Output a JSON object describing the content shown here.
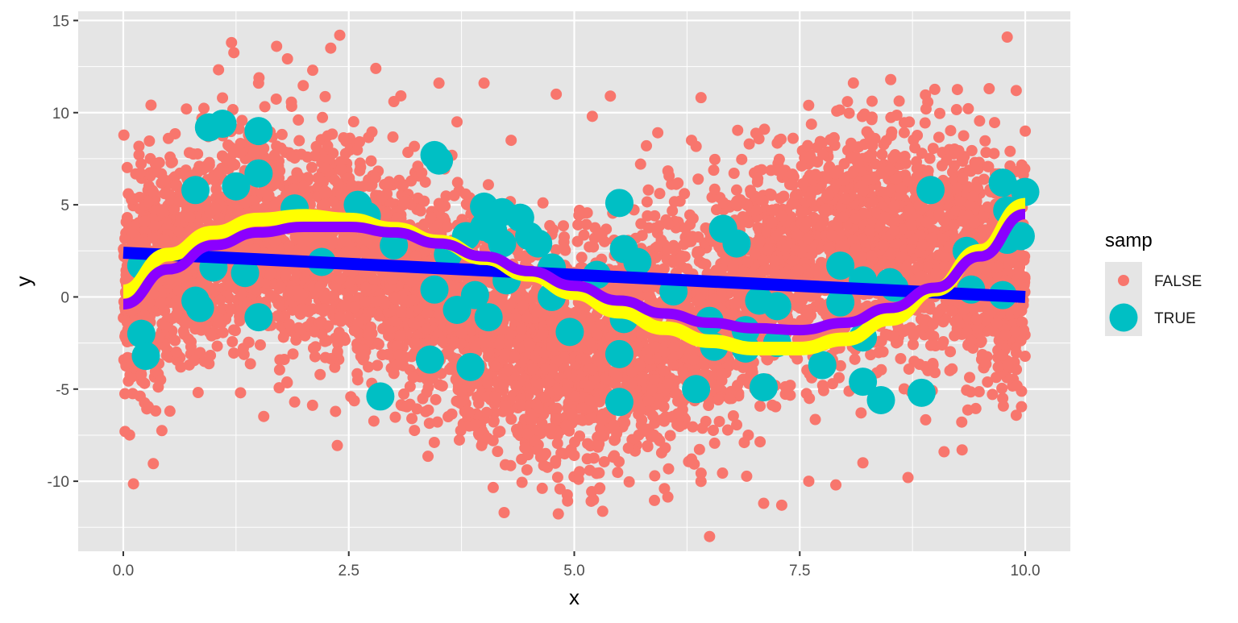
{
  "chart_data": {
    "type": "scatter",
    "title": "",
    "xlabel": "x",
    "ylabel": "y",
    "xlim": [
      -0.5,
      10.5
    ],
    "ylim": [
      -13.8,
      15.5
    ],
    "x_ticks": [
      0,
      2.5,
      5,
      7.5,
      10
    ],
    "x_tick_labels": [
      "0.0",
      "2.5",
      "5.0",
      "7.5",
      "10.0"
    ],
    "y_ticks": [
      -10,
      -5,
      0,
      5,
      10,
      15
    ],
    "y_tick_labels": [
      "-10",
      "-5",
      "0",
      "5",
      "10",
      "15"
    ],
    "grid": true,
    "background": "#e5e5e5",
    "legend": {
      "title": "samp",
      "placement": "right",
      "entries": [
        {
          "label": "FALSE",
          "color": "#f8766d"
        },
        {
          "label": "TRUE",
          "color": "#00bfc4"
        }
      ]
    },
    "series": [
      {
        "name": "FALSE",
        "kind": "points",
        "color": "#f8766d",
        "note_density": "dense cloud following y = 3*sin(x) + noise",
        "points": [
          [
            0.02,
            -7.3
          ],
          [
            0.05,
            1.2
          ],
          [
            0.1,
            3.5
          ],
          [
            0.2,
            -4.2
          ],
          [
            0.3,
            7.5
          ],
          [
            0.4,
            -2.2
          ],
          [
            0.5,
            8.6
          ],
          [
            0.7,
            10.2
          ],
          [
            0.9,
            -3.5
          ],
          [
            1.1,
            10.8
          ],
          [
            1.2,
            13.8
          ],
          [
            1.3,
            -5.2
          ],
          [
            1.5,
            11.6
          ],
          [
            1.7,
            13.6
          ],
          [
            1.9,
            -5.7
          ],
          [
            2.1,
            12.3
          ],
          [
            2.3,
            13.5
          ],
          [
            2.4,
            14.2
          ],
          [
            2.6,
            -4.5
          ],
          [
            2.8,
            12.4
          ],
          [
            3.0,
            10.6
          ],
          [
            3.2,
            -6.6
          ],
          [
            3.5,
            11.6
          ],
          [
            3.7,
            9.5
          ],
          [
            4.0,
            11.6
          ],
          [
            4.1,
            -7.8
          ],
          [
            4.3,
            8.5
          ],
          [
            4.6,
            -6.0
          ],
          [
            4.8,
            11.0
          ],
          [
            5.0,
            -8.6
          ],
          [
            5.2,
            9.8
          ],
          [
            5.4,
            10.9
          ],
          [
            5.6,
            -8.2
          ],
          [
            5.8,
            8.2
          ],
          [
            6.0,
            -10.4
          ],
          [
            6.3,
            8.5
          ],
          [
            6.5,
            -13.0
          ],
          [
            6.8,
            5.8
          ],
          [
            7.1,
            -11.2
          ],
          [
            7.3,
            -11.3
          ],
          [
            7.6,
            -10.0
          ],
          [
            7.9,
            -10.2
          ],
          [
            8.2,
            -9.0
          ],
          [
            8.5,
            6.9
          ],
          [
            8.7,
            -9.8
          ],
          [
            8.9,
            10.2
          ],
          [
            9.1,
            -8.4
          ],
          [
            9.3,
            -8.3
          ],
          [
            9.6,
            11.3
          ],
          [
            9.8,
            14.1
          ],
          [
            9.9,
            11.2
          ],
          [
            10.0,
            9.0
          ],
          [
            9.7,
            -3.8
          ],
          [
            8.0,
            2.0
          ],
          [
            6.0,
            -3.0
          ],
          [
            4.5,
            1.5
          ],
          [
            3.0,
            4.0
          ],
          [
            1.0,
            3.0
          ],
          [
            2.0,
            6.0
          ],
          [
            7.0,
            -5.0
          ]
        ]
      },
      {
        "name": "TRUE",
        "kind": "points",
        "color": "#00bfc4",
        "points": [
          [
            0.2,
            -2.0
          ],
          [
            0.25,
            -3.2
          ],
          [
            0.2,
            1.7
          ],
          [
            0.8,
            5.8
          ],
          [
            0.8,
            -0.2
          ],
          [
            0.85,
            -0.6
          ],
          [
            0.95,
            9.2
          ],
          [
            1.0,
            1.6
          ],
          [
            1.1,
            9.4
          ],
          [
            1.25,
            6.0
          ],
          [
            1.35,
            1.3
          ],
          [
            1.5,
            9.0
          ],
          [
            1.5,
            6.7
          ],
          [
            1.5,
            -1.1
          ],
          [
            1.9,
            4.8
          ],
          [
            2.2,
            1.9
          ],
          [
            2.6,
            5.0
          ],
          [
            2.7,
            4.4
          ],
          [
            2.85,
            -5.4
          ],
          [
            3.0,
            2.8
          ],
          [
            3.4,
            -3.4
          ],
          [
            3.45,
            7.7
          ],
          [
            3.45,
            0.4
          ],
          [
            3.5,
            7.4
          ],
          [
            3.6,
            2.3
          ],
          [
            3.7,
            -0.7
          ],
          [
            3.8,
            3.3
          ],
          [
            3.85,
            -3.8
          ],
          [
            3.9,
            0.1
          ],
          [
            4.0,
            4.9
          ],
          [
            4.0,
            3.8
          ],
          [
            4.05,
            -1.1
          ],
          [
            4.1,
            3.6
          ],
          [
            4.2,
            4.6
          ],
          [
            4.2,
            2.9
          ],
          [
            4.25,
            0.9
          ],
          [
            4.4,
            4.3
          ],
          [
            4.5,
            3.3
          ],
          [
            4.6,
            2.9
          ],
          [
            4.75,
            1.6
          ],
          [
            4.75,
            0.0
          ],
          [
            4.95,
            -1.9
          ],
          [
            5.25,
            1.2
          ],
          [
            5.5,
            5.1
          ],
          [
            5.5,
            -3.1
          ],
          [
            5.5,
            -5.7
          ],
          [
            5.55,
            2.6
          ],
          [
            5.55,
            -1.2
          ],
          [
            5.7,
            1.9
          ],
          [
            6.1,
            0.3
          ],
          [
            6.35,
            -5.0
          ],
          [
            6.5,
            -1.3
          ],
          [
            6.55,
            -2.7
          ],
          [
            6.65,
            3.7
          ],
          [
            6.8,
            2.9
          ],
          [
            6.9,
            -1.8
          ],
          [
            6.9,
            -2.8
          ],
          [
            7.05,
            -0.2
          ],
          [
            7.1,
            -4.9
          ],
          [
            7.25,
            -0.5
          ],
          [
            7.25,
            -2.5
          ],
          [
            7.75,
            -3.7
          ],
          [
            7.95,
            1.7
          ],
          [
            7.95,
            -0.3
          ],
          [
            8.2,
            0.9
          ],
          [
            8.2,
            -2.2
          ],
          [
            8.2,
            -4.6
          ],
          [
            8.4,
            -5.6
          ],
          [
            8.5,
            0.8
          ],
          [
            8.55,
            0.5
          ],
          [
            8.85,
            -5.2
          ],
          [
            8.95,
            5.8
          ],
          [
            9.35,
            2.5
          ],
          [
            9.4,
            0.4
          ],
          [
            9.75,
            6.2
          ],
          [
            9.8,
            4.7
          ],
          [
            9.8,
            3.1
          ],
          [
            9.75,
            0.1
          ],
          [
            9.95,
            3.3
          ],
          [
            10.0,
            5.7
          ]
        ]
      },
      {
        "name": "",
        "kind": "line",
        "color": "#0000ff",
        "points": [
          [
            0,
            2.4
          ],
          [
            10,
            0.0
          ]
        ]
      },
      {
        "name": "",
        "kind": "curve",
        "color": "#ffff00",
        "points": [
          [
            0,
            0.3
          ],
          [
            0.5,
            2.3
          ],
          [
            1.0,
            3.5
          ],
          [
            1.5,
            4.2
          ],
          [
            2.0,
            4.4
          ],
          [
            2.5,
            4.2
          ],
          [
            3.0,
            3.7
          ],
          [
            3.5,
            3.0
          ],
          [
            4.0,
            2.1
          ],
          [
            4.5,
            1.2
          ],
          [
            5.0,
            0.2
          ],
          [
            5.5,
            -0.8
          ],
          [
            6.0,
            -1.7
          ],
          [
            6.5,
            -2.4
          ],
          [
            7.0,
            -2.8
          ],
          [
            7.5,
            -2.8
          ],
          [
            8.0,
            -2.3
          ],
          [
            8.5,
            -1.2
          ],
          [
            9.0,
            0.4
          ],
          [
            9.5,
            2.5
          ],
          [
            10.0,
            5.0
          ]
        ]
      },
      {
        "name": "",
        "kind": "curve",
        "color": "#8b00ff",
        "points": [
          [
            0,
            -0.4
          ],
          [
            0.5,
            1.5
          ],
          [
            1.0,
            2.8
          ],
          [
            1.5,
            3.5
          ],
          [
            2.0,
            3.8
          ],
          [
            2.5,
            3.8
          ],
          [
            3.0,
            3.5
          ],
          [
            3.5,
            2.9
          ],
          [
            4.0,
            2.2
          ],
          [
            4.5,
            1.4
          ],
          [
            5.0,
            0.6
          ],
          [
            5.5,
            -0.2
          ],
          [
            6.0,
            -0.9
          ],
          [
            6.5,
            -1.4
          ],
          [
            7.0,
            -1.7
          ],
          [
            7.5,
            -1.8
          ],
          [
            8.0,
            -1.4
          ],
          [
            8.5,
            -0.6
          ],
          [
            9.0,
            0.5
          ],
          [
            9.5,
            2.2
          ],
          [
            10.0,
            4.5
          ]
        ]
      }
    ]
  }
}
